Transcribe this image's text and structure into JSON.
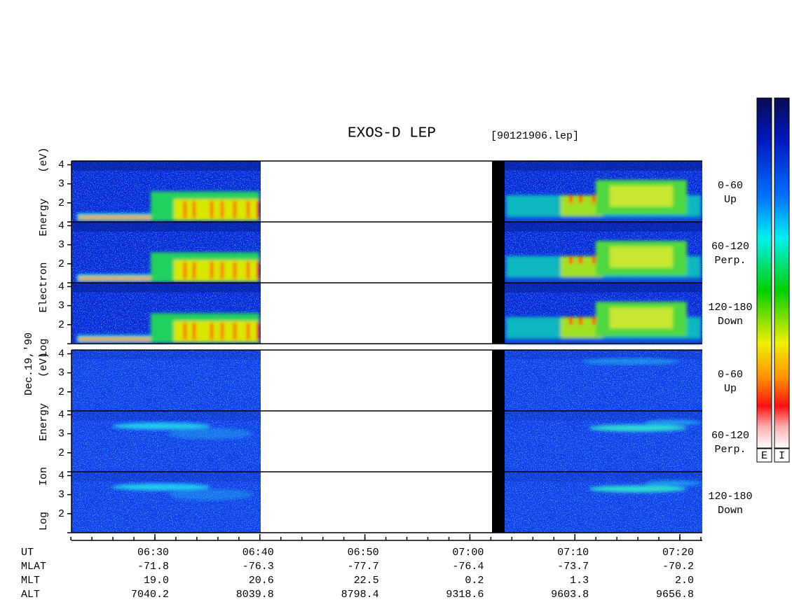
{
  "title": "EXOS-D LEP",
  "file_name": "[90121906.lep]",
  "date": "Dec.19,'90",
  "electron": {
    "axis_label": "Log Electron Energy (eV)",
    "panels": [
      {
        "range": "0-60",
        "direction": "Up"
      },
      {
        "range": "60-120",
        "direction": "Perp."
      },
      {
        "range": "120-180",
        "direction": "Down"
      }
    ]
  },
  "ion": {
    "axis_label": "Log Ion Energy (eV)",
    "panels": [
      {
        "range": "0-60",
        "direction": "Up"
      },
      {
        "range": "60-120",
        "direction": "Perp."
      },
      {
        "range": "120-180",
        "direction": "Down"
      }
    ]
  },
  "ylim": [
    1,
    4.2
  ],
  "yticks": [
    {
      "value": 1,
      "label": null
    },
    2,
    3,
    4
  ],
  "colorbar": [
    "E",
    "I"
  ],
  "x_axis": {
    "rows": [
      {
        "name": "UT",
        "values": [
          "06:30",
          "06:40",
          "06:50",
          "07:00",
          "07:10",
          "07:20"
        ]
      },
      {
        "name": "MLAT",
        "values": [
          "-71.8",
          "-76.3",
          "-77.7",
          "-76.4",
          "-73.7",
          "-70.2"
        ]
      },
      {
        "name": "MLT",
        "values": [
          "19.0",
          "20.6",
          "22.5",
          "0.2",
          "1.3",
          "2.0"
        ]
      },
      {
        "name": "ALT",
        "values": [
          "7040.2",
          "8039.8",
          "8798.4",
          "9318.6",
          "9603.8",
          "9656.8"
        ]
      }
    ]
  }
}
